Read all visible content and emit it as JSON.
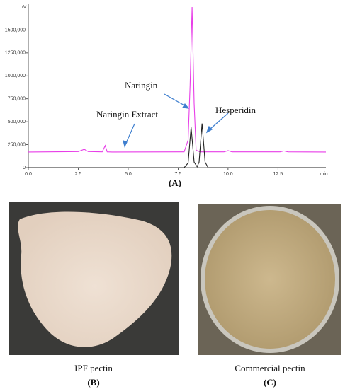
{
  "chart_data": {
    "type": "line",
    "y_unit": "uV",
    "x_unit": "min",
    "xlim": [
      0,
      14.9
    ],
    "ylim": [
      0,
      1750000
    ],
    "xticks": [
      {
        "value": 0,
        "label": "0.0"
      },
      2.5,
      {
        "value": 5,
        "label": "5.0"
      },
      7.5,
      {
        "value": 10,
        "label": "10.0"
      },
      12.5
    ],
    "yticks": [
      0,
      {
        "value": 250000,
        "label": "250,000"
      },
      {
        "value": 500000,
        "label": "500,000"
      },
      {
        "value": 750000,
        "label": "750,000"
      },
      {
        "value": 1000000,
        "label": "1000,000"
      },
      {
        "value": 1250000,
        "label": "1250,000"
      },
      {
        "value": 1500000,
        "label": "1500,000"
      }
    ],
    "series": [
      {
        "name": "Naringin Extract",
        "color": "#e83ee8",
        "x": [
          0,
          2.5,
          2.8,
          3.0,
          3.7,
          3.85,
          3.95,
          4.2,
          7.8,
          8.0,
          8.1,
          8.2,
          8.3,
          8.4,
          8.6,
          9.8,
          10.0,
          10.2,
          12.6,
          12.8,
          13.0,
          14.9
        ],
        "values": [
          170000,
          175000,
          200000,
          175000,
          172000,
          240000,
          172000,
          170000,
          172000,
          300000,
          900000,
          1750000,
          700000,
          190000,
          172000,
          172000,
          185000,
          172000,
          172000,
          182000,
          172000,
          170000
        ]
      },
      {
        "color": "#222222",
        "x": [
          0,
          7.8,
          8.0,
          8.15,
          8.3,
          8.45,
          8.55,
          8.7,
          8.85,
          9.0,
          14.9
        ],
        "values": [
          0,
          0,
          50000,
          440000,
          60000,
          10000,
          60000,
          480000,
          60000,
          0,
          0
        ]
      }
    ],
    "annotations": [
      "Naringin",
      "Hesperidin"
    ],
    "caption": "(A)"
  },
  "panels": [
    {
      "label": "IPF pectin",
      "caption": "(B)"
    },
    {
      "label": "Commercial pectin",
      "caption": "(C)"
    }
  ]
}
